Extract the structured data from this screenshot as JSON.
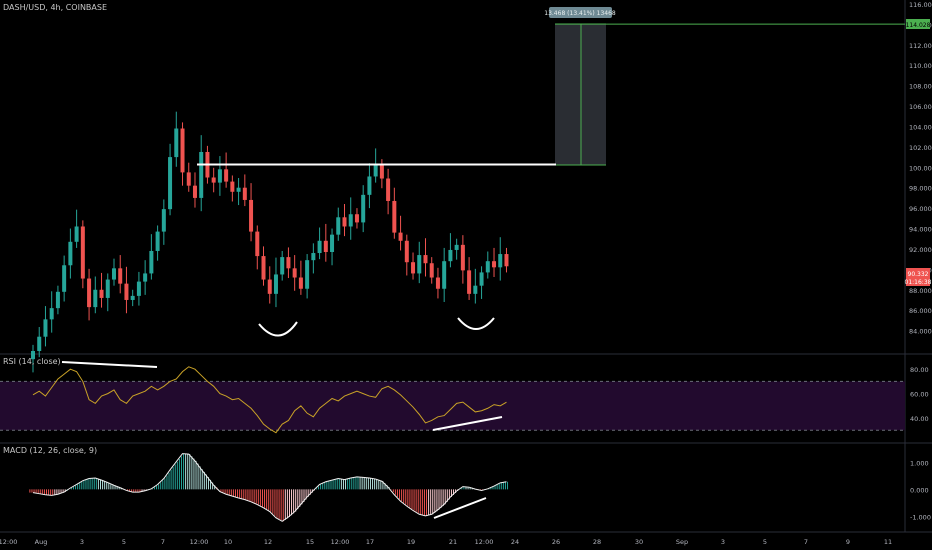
{
  "chart_data": [
    {
      "type": "candlestick",
      "title": "DASH/USD, 4h, COINBASE",
      "ylim": [
        82,
        116
      ],
      "y_ticks": [
        "84.000",
        "86.000",
        "88.000",
        "90.000",
        "92.000",
        "94.000",
        "96.000",
        "98.000",
        "100.000",
        "102.000",
        "104.000",
        "106.000",
        "108.000",
        "110.000",
        "112.000",
        "114.000",
        "116.000"
      ],
      "x_ticks": [
        "12:00",
        "Aug",
        "3",
        "5",
        "7",
        "12:00",
        "10",
        "12",
        "15",
        "12:00",
        "17",
        "19",
        "21",
        "12:00",
        "24",
        "26",
        "28",
        "30",
        "Sep",
        "3",
        "5",
        "7",
        "9",
        "11"
      ],
      "price_badge": {
        "line1": "90.332",
        "line2": "01:16:38",
        "color": "#ef5350"
      },
      "target_badge": {
        "label": "114.028",
        "value": 114.028,
        "color": "#4caf50"
      },
      "resistance_level": 100.5,
      "measure_label": "13.468 (13.41%) 13468",
      "close_series": [
        82.0,
        83.4,
        85.1,
        86.2,
        87.8,
        90.4,
        92.7,
        94.2,
        89.1,
        86.3,
        88.0,
        87.2,
        89.0,
        90.1,
        88.6,
        87.0,
        87.4,
        88.8,
        89.6,
        91.8,
        93.7,
        95.9,
        101.0,
        103.8,
        99.5,
        98.2,
        97.0,
        101.5,
        99.0,
        98.5,
        99.8,
        98.6,
        97.6,
        98.0,
        96.8,
        93.7,
        91.3,
        89.0,
        87.6,
        89.5,
        91.2,
        90.1,
        89.2,
        88.1,
        90.9,
        91.6,
        92.8,
        91.7,
        93.4,
        95.1,
        94.2,
        95.4,
        94.6,
        97.3,
        99.1,
        100.2,
        98.9,
        96.7,
        93.6,
        92.8,
        90.7,
        89.6,
        91.4,
        90.6,
        89.2,
        88.1,
        90.8,
        91.9,
        92.4,
        89.9,
        87.6,
        88.4,
        89.7,
        90.8,
        90.2,
        91.5,
        90.3
      ]
    },
    {
      "type": "line",
      "title": "RSI (14, close)",
      "ylim": [
        22,
        90
      ],
      "y_ticks": [
        "80.00",
        "60.00",
        "40.00"
      ],
      "bands": [
        70,
        30
      ],
      "values": [
        59,
        62,
        58,
        65,
        72,
        76,
        80,
        78,
        70,
        55,
        52,
        58,
        60,
        63,
        55,
        52,
        58,
        60,
        62,
        66,
        63,
        66,
        70,
        72,
        78,
        82,
        80,
        75,
        70,
        66,
        60,
        58,
        55,
        56,
        52,
        48,
        42,
        35,
        31,
        28,
        35,
        38,
        46,
        50,
        44,
        41,
        48,
        52,
        56,
        54,
        58,
        60,
        62,
        60,
        58,
        57,
        64,
        66,
        63,
        59,
        54,
        49,
        43,
        36,
        38,
        41,
        42,
        47,
        52,
        53,
        49,
        45,
        46,
        48,
        51,
        50,
        53
      ]
    },
    {
      "type": "bar",
      "title": "MACD (12, 26, close, 9)",
      "ylim": [
        -1.5,
        1.6
      ],
      "y_ticks": [
        "1.000",
        "0.000",
        "-1.000"
      ],
      "histogram": [
        -0.12,
        -0.16,
        -0.2,
        -0.22,
        -0.18,
        -0.1,
        0.05,
        0.18,
        0.32,
        0.4,
        0.42,
        0.34,
        0.25,
        0.15,
        0.06,
        -0.04,
        -0.1,
        -0.1,
        -0.05,
        0.02,
        0.18,
        0.4,
        0.72,
        1.02,
        1.32,
        1.3,
        1.05,
        0.74,
        0.45,
        0.15,
        -0.08,
        -0.18,
        -0.25,
        -0.32,
        -0.38,
        -0.46,
        -0.56,
        -0.68,
        -0.82,
        -1.05,
        -1.18,
        -1.02,
        -0.82,
        -0.55,
        -0.28,
        -0.04,
        0.18,
        0.28,
        0.34,
        0.4,
        0.36,
        0.42,
        0.46,
        0.44,
        0.42,
        0.38,
        0.3,
        0.08,
        -0.2,
        -0.44,
        -0.62,
        -0.78,
        -0.92,
        -0.98,
        -0.92,
        -0.75,
        -0.55,
        -0.28,
        -0.06,
        0.1,
        0.08,
        0.01,
        -0.04,
        0.02,
        0.12,
        0.24,
        0.28
      ]
    }
  ]
}
